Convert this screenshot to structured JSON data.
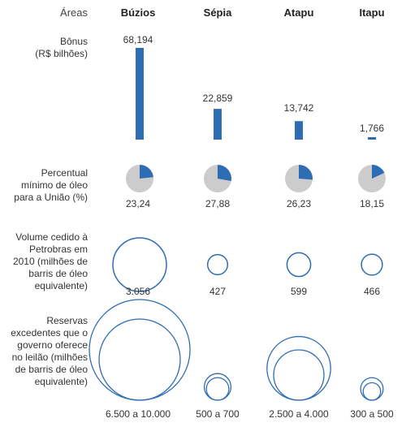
{
  "header": {
    "areas_label": "Áreas"
  },
  "rows": {
    "bonus": "Bônus\n(R$ bilhões)",
    "percent": "Percentual\nmínimo de óleo\npara a União (%)",
    "volume": "Volume cedido à\nPetrobras em\n2010 (milhões de\nbarris de óleo\nequivalente)",
    "reserves": "Reservas\nexcedentes que o\ngoverno oferece\nno leilão (milhões\nde barris de óleo\nequivalente)"
  },
  "chart_data": {
    "type": "table",
    "accent_color": "#2e6db4",
    "pie_bg_color": "#cccccc",
    "areas": [
      "Búzios",
      "Sépia",
      "Atapu",
      "Itapu"
    ],
    "bonus_labels": [
      "68,194",
      "22,859",
      "13,742",
      "1,766"
    ],
    "bonus_values": [
      68.194,
      22.859,
      13.742,
      1.766
    ],
    "percent_labels": [
      "23,24",
      "27,88",
      "26,23",
      "18,15"
    ],
    "percent_values": [
      23.24,
      27.88,
      26.23,
      18.15
    ],
    "volume_labels": [
      "3.056",
      "427",
      "599",
      "466"
    ],
    "volume_values": [
      3056,
      427,
      599,
      466
    ],
    "reserves_labels": [
      "6.500 a 10.000",
      "500 a 700",
      "2.500 a 4.000",
      "300 a 500"
    ],
    "reserves_ranges": [
      [
        6500,
        10000
      ],
      [
        500,
        700
      ],
      [
        2500,
        4000
      ],
      [
        300,
        500
      ]
    ]
  }
}
